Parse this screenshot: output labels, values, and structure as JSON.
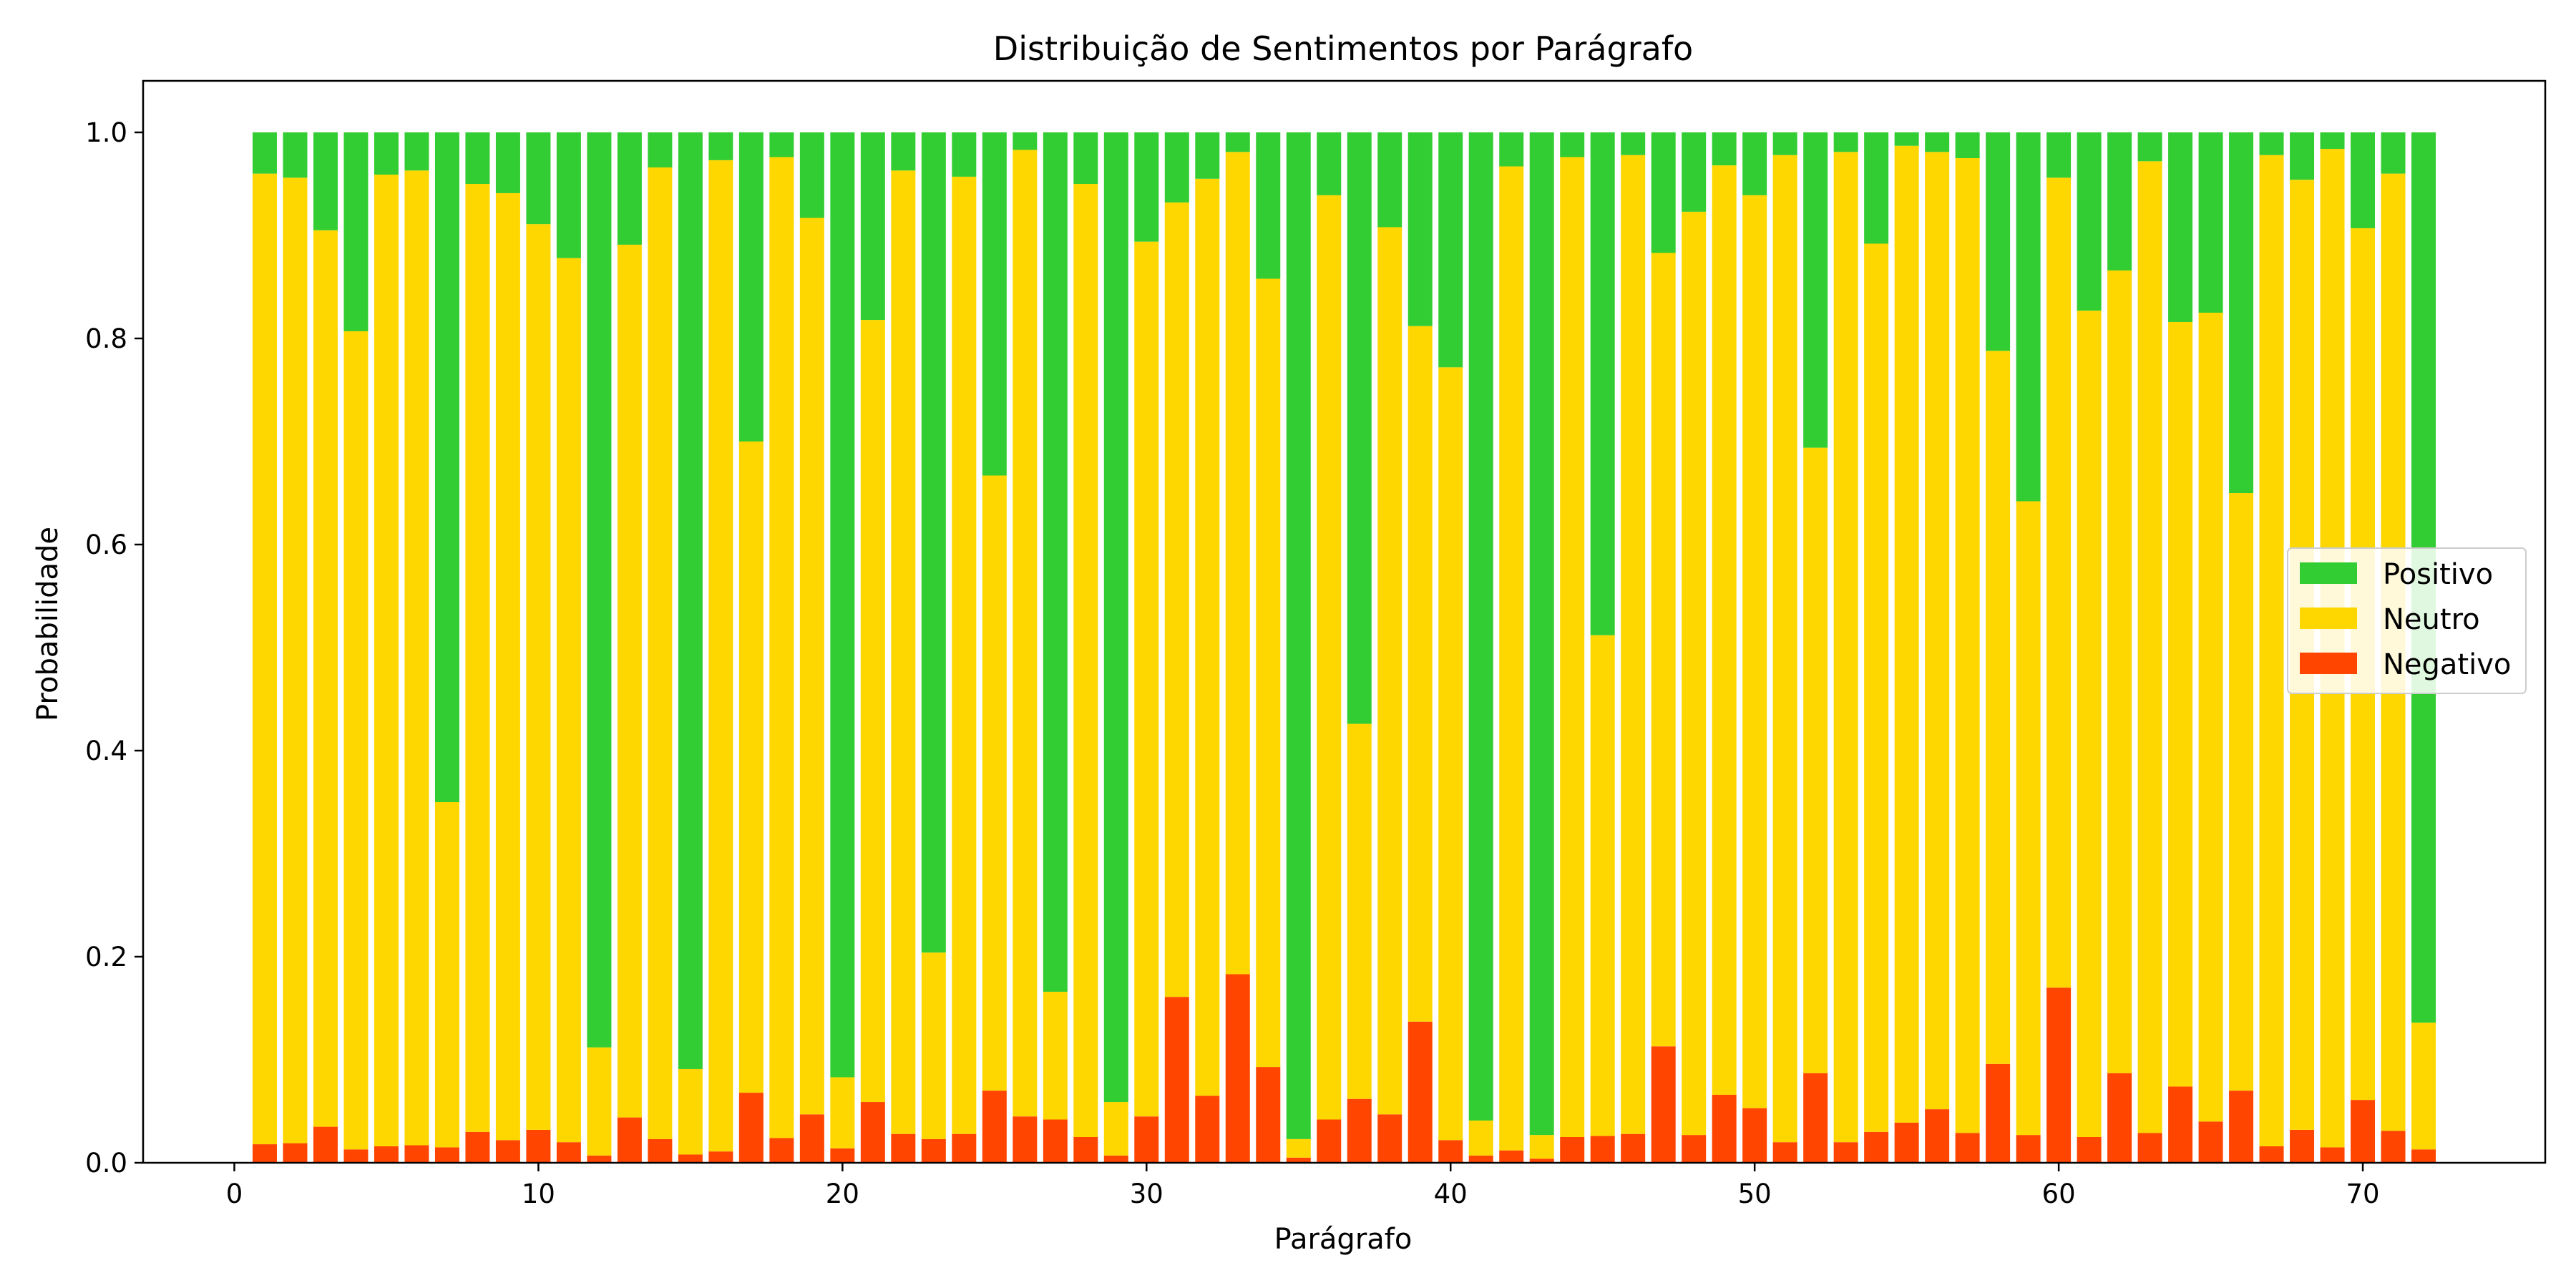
{
  "chart_data": {
    "type": "bar",
    "stacked": true,
    "title": "Distribuição de Sentimentos por Parágrafo",
    "xlabel": "Parágrafo",
    "ylabel": "Probabilidade",
    "xlim": [
      -3,
      76
    ],
    "ylim": [
      0,
      1.05
    ],
    "xticks": [
      0,
      10,
      20,
      30,
      40,
      50,
      60,
      70
    ],
    "yticks": [
      0.0,
      0.2,
      0.4,
      0.6,
      0.8,
      1.0
    ],
    "ytick_labels": [
      "0.0",
      "0.2",
      "0.4",
      "0.6",
      "0.8",
      "1.0"
    ],
    "legend_position": "center-right",
    "x": [
      1,
      2,
      3,
      4,
      5,
      6,
      7,
      8,
      9,
      10,
      11,
      12,
      13,
      14,
      15,
      16,
      17,
      18,
      19,
      20,
      21,
      22,
      23,
      24,
      25,
      26,
      27,
      28,
      29,
      30,
      31,
      32,
      33,
      34,
      35,
      36,
      37,
      38,
      39,
      40,
      41,
      42,
      43,
      44,
      45,
      46,
      47,
      48,
      49,
      50,
      51,
      52,
      53,
      54,
      55,
      56,
      57,
      58,
      59,
      60,
      61,
      62,
      63,
      64,
      65,
      66,
      67,
      68,
      69,
      70,
      71,
      72
    ],
    "series": [
      {
        "name": "Negativo",
        "color": "#FF4500",
        "values": [
          0.018,
          0.019,
          0.035,
          0.013,
          0.016,
          0.017,
          0.015,
          0.03,
          0.022,
          0.032,
          0.02,
          0.007,
          0.044,
          0.023,
          0.008,
          0.011,
          0.068,
          0.024,
          0.047,
          0.014,
          0.059,
          0.028,
          0.023,
          0.028,
          0.07,
          0.045,
          0.042,
          0.025,
          0.007,
          0.045,
          0.161,
          0.065,
          0.183,
          0.093,
          0.005,
          0.042,
          0.062,
          0.047,
          0.137,
          0.022,
          0.007,
          0.012,
          0.004,
          0.025,
          0.026,
          0.028,
          0.113,
          0.027,
          0.066,
          0.053,
          0.02,
          0.087,
          0.02,
          0.03,
          0.039,
          0.052,
          0.029,
          0.096,
          0.027,
          0.17,
          0.025,
          0.087,
          0.029,
          0.074,
          0.04,
          0.07,
          0.016,
          0.032,
          0.015,
          0.061,
          0.031,
          0.013
        ]
      },
      {
        "name": "Neutro",
        "color": "#FFD700",
        "values": [
          0.942,
          0.937,
          0.87,
          0.794,
          0.943,
          0.946,
          0.335,
          0.92,
          0.919,
          0.879,
          0.858,
          0.105,
          0.847,
          0.943,
          0.083,
          0.962,
          0.632,
          0.952,
          0.87,
          0.069,
          0.759,
          0.935,
          0.181,
          0.929,
          0.597,
          0.938,
          0.124,
          0.925,
          0.052,
          0.849,
          0.771,
          0.89,
          0.798,
          0.765,
          0.018,
          0.897,
          0.364,
          0.861,
          0.675,
          0.75,
          0.034,
          0.955,
          0.023,
          0.951,
          0.486,
          0.95,
          0.77,
          0.896,
          0.902,
          0.886,
          0.958,
          0.607,
          0.961,
          0.862,
          0.948,
          0.929,
          0.946,
          0.692,
          0.615,
          0.786,
          0.802,
          0.779,
          0.943,
          0.742,
          0.785,
          0.58,
          0.962,
          0.922,
          0.969,
          0.846,
          0.929,
          0.123
        ]
      },
      {
        "name": "Positivo",
        "color": "#32CD32",
        "values": [
          0.04,
          0.044,
          0.095,
          0.193,
          0.041,
          0.037,
          0.65,
          0.05,
          0.059,
          0.089,
          0.122,
          0.888,
          0.109,
          0.034,
          0.909,
          0.027,
          0.3,
          0.024,
          0.083,
          0.917,
          0.182,
          0.037,
          0.796,
          0.043,
          0.333,
          0.017,
          0.834,
          0.05,
          0.941,
          0.106,
          0.068,
          0.045,
          0.019,
          0.142,
          0.977,
          0.061,
          0.574,
          0.092,
          0.188,
          0.228,
          0.959,
          0.033,
          0.973,
          0.024,
          0.488,
          0.022,
          0.117,
          0.077,
          0.032,
          0.061,
          0.022,
          0.306,
          0.019,
          0.108,
          0.013,
          0.019,
          0.025,
          0.212,
          0.358,
          0.044,
          0.173,
          0.134,
          0.028,
          0.184,
          0.175,
          0.35,
          0.022,
          0.046,
          0.016,
          0.093,
          0.04,
          0.864
        ]
      }
    ],
    "legend_order": [
      "Positivo",
      "Neutro",
      "Negativo"
    ]
  }
}
